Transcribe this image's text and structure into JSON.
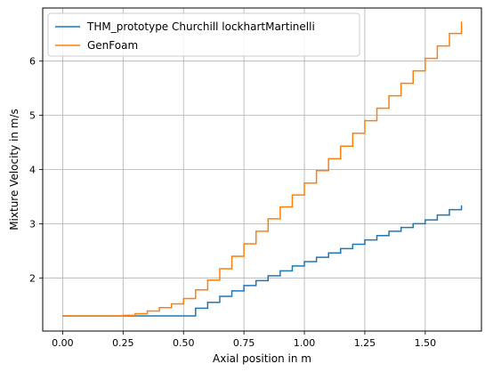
{
  "chart_data": {
    "type": "line",
    "step": true,
    "title": "",
    "xlabel": "Axial position in m",
    "ylabel": "Mixture Velocity in m/s",
    "xlim": [
      -0.0825,
      1.7325
    ],
    "ylim": [
      1.02,
      6.98
    ],
    "xticks": [
      0.0,
      0.25,
      0.5,
      0.75,
      1.0,
      1.25,
      1.5
    ],
    "xtick_labels": [
      "0.00",
      "0.25",
      "0.50",
      "0.75",
      "1.00",
      "1.25",
      "1.50"
    ],
    "yticks": [
      2,
      3,
      4,
      5,
      6
    ],
    "ytick_labels": [
      "2",
      "3",
      "4",
      "5",
      "6"
    ],
    "grid": true,
    "legend_position": "upper-left",
    "series": [
      {
        "name": "THM_prototype Churchill lockhartMartinelli",
        "color": "#1f77b4",
        "x": [
          0.0,
          0.5,
          0.55,
          0.6,
          0.65,
          0.7,
          0.75,
          0.8,
          0.85,
          0.9,
          0.95,
          1.0,
          1.05,
          1.1,
          1.15,
          1.2,
          1.25,
          1.3,
          1.35,
          1.4,
          1.45,
          1.5,
          1.55,
          1.6,
          1.65
        ],
        "y": [
          1.3,
          1.3,
          1.44,
          1.55,
          1.66,
          1.76,
          1.86,
          1.95,
          2.04,
          2.13,
          2.22,
          2.3,
          2.38,
          2.46,
          2.54,
          2.62,
          2.7,
          2.78,
          2.86,
          2.93,
          3.0,
          3.07,
          3.16,
          3.26,
          3.34
        ]
      },
      {
        "name": "GenFoam",
        "color": "#ff7f0e",
        "x": [
          0.0,
          0.25,
          0.3,
          0.35,
          0.4,
          0.45,
          0.5,
          0.55,
          0.6,
          0.65,
          0.7,
          0.75,
          0.8,
          0.85,
          0.9,
          0.95,
          1.0,
          1.05,
          1.1,
          1.15,
          1.2,
          1.25,
          1.3,
          1.35,
          1.4,
          1.45,
          1.5,
          1.55,
          1.6,
          1.65
        ],
        "y": [
          1.3,
          1.31,
          1.34,
          1.39,
          1.45,
          1.52,
          1.62,
          1.78,
          1.96,
          2.17,
          2.4,
          2.63,
          2.86,
          3.09,
          3.31,
          3.53,
          3.75,
          3.98,
          4.2,
          4.43,
          4.67,
          4.9,
          5.13,
          5.36,
          5.59,
          5.82,
          6.05,
          6.28,
          6.51,
          6.73
        ]
      }
    ]
  }
}
